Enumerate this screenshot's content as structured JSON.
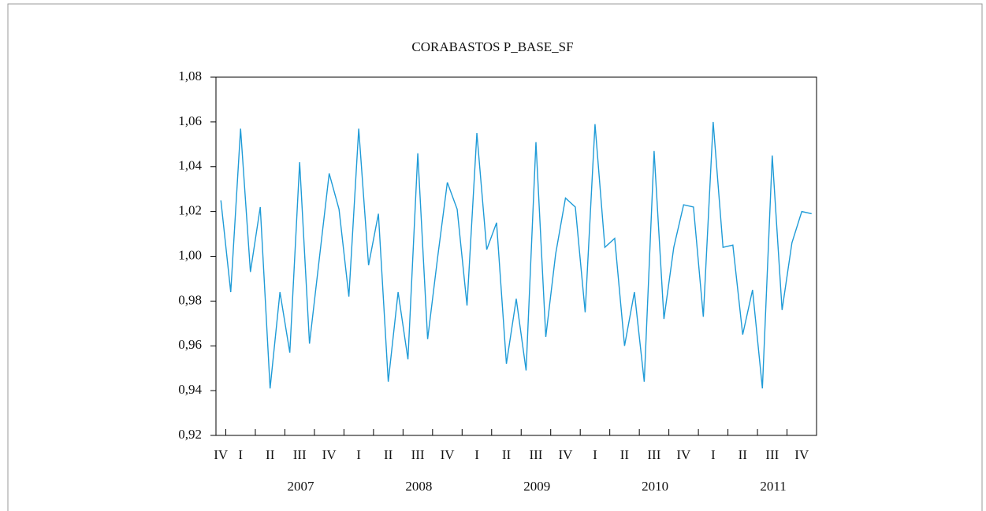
{
  "chart_data": {
    "type": "line",
    "title": "CORABASTOS P_BASE_SF",
    "categories": [
      "IV",
      null,
      "I",
      null,
      null,
      "II",
      null,
      null,
      "III",
      null,
      null,
      "IV",
      null,
      null,
      "I",
      null,
      null,
      "II",
      null,
      null,
      "III",
      null,
      null,
      "IV",
      null,
      null,
      "I",
      null,
      null,
      "II",
      null,
      null,
      "III",
      null,
      null,
      "IV",
      null,
      null,
      "I",
      null,
      null,
      "II",
      null,
      null,
      "III",
      null,
      null,
      "IV",
      null,
      null,
      "I",
      null,
      null,
      "II",
      null,
      null,
      "III",
      null,
      null,
      "IV",
      null
    ],
    "x_groups": [
      "2007",
      "2008",
      "2009",
      "2010",
      "2011"
    ],
    "series": [
      {
        "name": "P_BASE_SF",
        "color": "#1f9bd7",
        "values": [
          1.025,
          0.984,
          1.057,
          0.993,
          1.022,
          0.941,
          0.984,
          0.957,
          1.042,
          0.961,
          0.999,
          1.037,
          1.021,
          0.982,
          1.057,
          0.996,
          1.019,
          0.944,
          0.984,
          0.954,
          1.046,
          0.963,
          0.999,
          1.033,
          1.021,
          0.978,
          1.055,
          1.003,
          1.015,
          0.952,
          0.981,
          0.949,
          1.051,
          0.964,
          1.001,
          1.026,
          1.022,
          0.975,
          1.059,
          1.004,
          1.008,
          0.96,
          0.984,
          0.944,
          1.047,
          0.972,
          1.004,
          1.023,
          1.022,
          0.973,
          1.06,
          1.004,
          1.005,
          0.965,
          0.985,
          0.941,
          1.045,
          0.976,
          1.006,
          1.02,
          1.019
        ]
      }
    ],
    "ylim": [
      0.92,
      1.08
    ],
    "yticks": [
      {
        "value": 0.92,
        "label": "0,92"
      },
      {
        "value": 0.94,
        "label": "0,94"
      },
      {
        "value": 0.96,
        "label": "0,96"
      },
      {
        "value": 0.98,
        "label": "0,98"
      },
      {
        "value": 1.0,
        "label": "1,00"
      },
      {
        "value": 1.02,
        "label": "1,02"
      },
      {
        "value": 1.04,
        "label": "1,04"
      },
      {
        "value": 1.06,
        "label": "1,06"
      },
      {
        "value": 1.08,
        "label": "1,08"
      }
    ],
    "grid": false
  }
}
